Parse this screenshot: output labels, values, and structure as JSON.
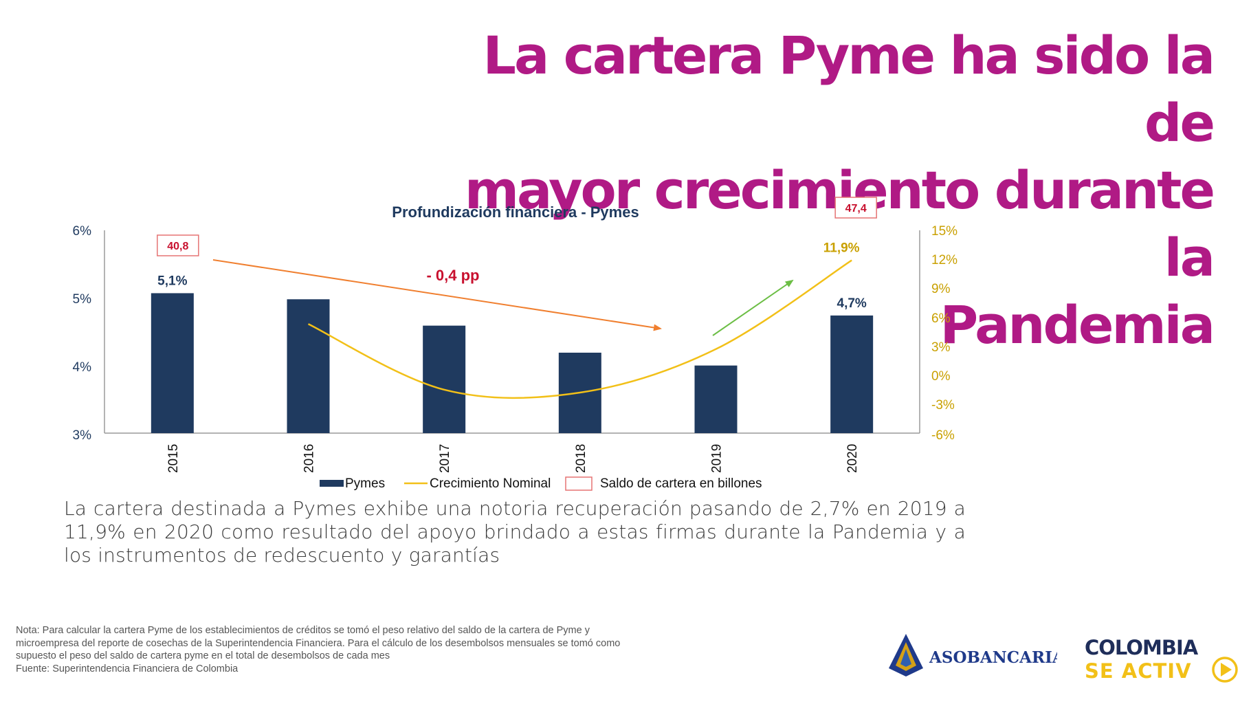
{
  "slide": {
    "title_lines": [
      "La cartera Pyme ha sido la de",
      "mayor crecimiento durante la",
      "Pandemia"
    ],
    "body_text": "La cartera destinada a Pymes exhibe una notoria recuperación pasando de 2,7% en 2019 a 11,9% en 2020 como resultado del apoyo brindado a estas firmas durante la Pandemia y a los instrumentos de redescuento y garantías",
    "note": "Nota: Para calcular la cartera Pyme de los establecimientos de créditos se tomó el peso relativo del saldo de la cartera de Pyme y microempresa del reporte de cosechas de la Superintendencia Financiera. Para el cálculo de los desembolsos mensuales se tomó como supuesto el peso del saldo de cartera pyme en el total de desembolsos de cada mes",
    "source": "Fuente: Superintendencia Financiera de Colombia",
    "logos": {
      "asobancaria": "ASOBANCARIA",
      "colombia_line1": "COLOMBIA",
      "colombia_line2": "SE ACTIV"
    },
    "colors": {
      "title": "#b01a85",
      "bars": "#1f3a5f",
      "line": "#f2c018",
      "right_axis": "#c9a000",
      "annotation_red": "#c8102e",
      "orange_arrow": "#f07f2f",
      "green_arrow": "#6cbe45"
    }
  },
  "chart_data": {
    "type": "bar",
    "title": "Profundización financiera - Pymes",
    "categories": [
      "2015",
      "2016",
      "2017",
      "2018",
      "2019",
      "2020"
    ],
    "series": [
      {
        "name": "Pymes",
        "type": "bar",
        "axis": "left",
        "values": [
          5.07,
          4.98,
          4.59,
          4.19,
          4.0,
          4.74
        ]
      },
      {
        "name": "Crecimiento Nominal",
        "type": "line",
        "axis": "right",
        "values": [
          null,
          5.3,
          -1.5,
          -1.8,
          2.7,
          11.9
        ]
      }
    ],
    "bar_labels": [
      {
        "category": "2015",
        "text": "5,1%"
      },
      {
        "category": "2020",
        "text": "4,7%"
      }
    ],
    "line_labels": [
      {
        "category": "2020",
        "text": "11,9%"
      }
    ],
    "saldo_labels": [
      {
        "category": "2015",
        "text": "40,8"
      },
      {
        "category": "2020",
        "text": "47,4"
      }
    ],
    "annotation": "- 0,4 pp",
    "left_axis": {
      "ylim": [
        3,
        6
      ],
      "ticks": [
        "3%",
        "4%",
        "5%",
        "6%"
      ]
    },
    "right_axis": {
      "ylim": [
        -6,
        15
      ],
      "ticks": [
        "-6%",
        "-3%",
        "0%",
        "3%",
        "6%",
        "9%",
        "12%",
        "15%"
      ]
    },
    "legend": {
      "placement": "bottom",
      "items": [
        "Pymes",
        "Crecimiento Nominal",
        "Saldo de cartera en billones"
      ]
    },
    "grid": false
  }
}
